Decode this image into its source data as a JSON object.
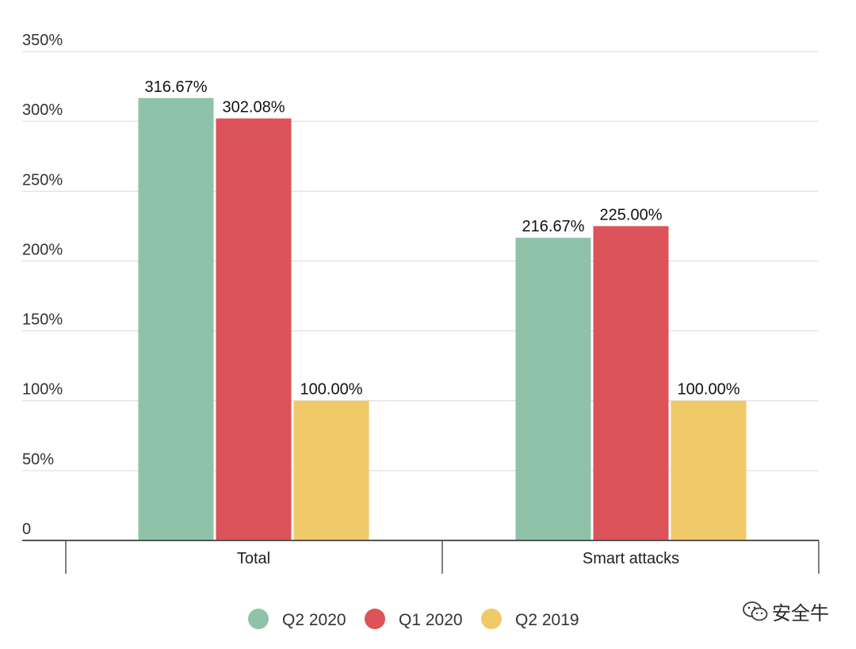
{
  "chart_data": {
    "type": "bar",
    "categories": [
      "Total",
      "Smart attacks"
    ],
    "series": [
      {
        "name": "Q2 2020",
        "color": "#8fc3a9",
        "values": [
          316.67,
          216.67
        ],
        "labels": [
          "316.67%",
          "216.67%"
        ]
      },
      {
        "name": "Q1 2020",
        "color": "#dc5359",
        "values": [
          302.08,
          225.0
        ],
        "labels": [
          "302.08%",
          "225.00%"
        ]
      },
      {
        "name": "Q2 2019",
        "color": "#f0ca69",
        "values": [
          100.0,
          100.0
        ],
        "labels": [
          "100.00%",
          "100.00%"
        ]
      }
    ],
    "y_ticks": [
      "0",
      "50%",
      "100%",
      "150%",
      "200%",
      "250%",
      "300%",
      "350%"
    ],
    "y_tick_values": [
      0,
      50,
      100,
      150,
      200,
      250,
      300,
      350
    ],
    "ylim": [
      0,
      350
    ],
    "grid": true,
    "legend_position": "bottom-center"
  },
  "watermark": {
    "text": "安全牛",
    "icon": "wechat-icon"
  }
}
